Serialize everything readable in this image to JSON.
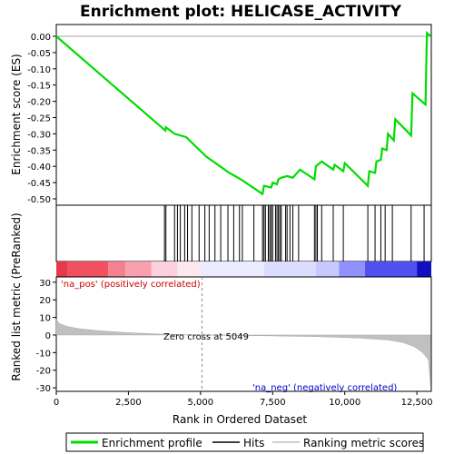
{
  "chart_data": {
    "type": "line",
    "title": "Enrichment plot: HELICASE_ACTIVITY",
    "top_panel": {
      "ylabel": "Enrichment score (ES)",
      "ylim": [
        -0.5,
        0.025
      ],
      "yticks": [
        0.0,
        -0.05,
        -0.1,
        -0.15,
        -0.2,
        -0.25,
        -0.3,
        -0.35,
        -0.4,
        -0.45,
        -0.5
      ],
      "ytick_labels": [
        "0.00",
        "-0.05",
        "-0.10",
        "-0.15",
        "-0.20",
        "-0.25",
        "-0.30",
        "-0.35",
        "-0.40",
        "-0.45",
        "-0.50"
      ],
      "series_color": "#00dd00",
      "es_points": [
        [
          0,
          0.0
        ],
        [
          3780,
          -0.29
        ],
        [
          3800,
          -0.28
        ],
        [
          4100,
          -0.3
        ],
        [
          4500,
          -0.31
        ],
        [
          5200,
          -0.37
        ],
        [
          6000,
          -0.42
        ],
        [
          6400,
          -0.44
        ],
        [
          6900,
          -0.47
        ],
        [
          7150,
          -0.485
        ],
        [
          7200,
          -0.46
        ],
        [
          7450,
          -0.465
        ],
        [
          7500,
          -0.45
        ],
        [
          7650,
          -0.455
        ],
        [
          7700,
          -0.44
        ],
        [
          7800,
          -0.435
        ],
        [
          8000,
          -0.43
        ],
        [
          8200,
          -0.435
        ],
        [
          8450,
          -0.41
        ],
        [
          8950,
          -0.44
        ],
        [
          9000,
          -0.4
        ],
        [
          9200,
          -0.385
        ],
        [
          9600,
          -0.41
        ],
        [
          9650,
          -0.395
        ],
        [
          9950,
          -0.415
        ],
        [
          10000,
          -0.39
        ],
        [
          10800,
          -0.46
        ],
        [
          10850,
          -0.415
        ],
        [
          11050,
          -0.42
        ],
        [
          11100,
          -0.385
        ],
        [
          11250,
          -0.38
        ],
        [
          11300,
          -0.345
        ],
        [
          11450,
          -0.35
        ],
        [
          11500,
          -0.3
        ],
        [
          11700,
          -0.32
        ],
        [
          11750,
          -0.255
        ],
        [
          12300,
          -0.305
        ],
        [
          12350,
          -0.175
        ],
        [
          12800,
          -0.21
        ],
        [
          12850,
          0.01
        ],
        [
          12980,
          0.0
        ]
      ]
    },
    "hits_positions": [
      3750,
      3800,
      4100,
      4200,
      4300,
      4450,
      4550,
      4700,
      4950,
      5150,
      5300,
      5500,
      5700,
      5950,
      6150,
      6350,
      6450,
      6850,
      7150,
      7200,
      7250,
      7350,
      7400,
      7450,
      7500,
      7600,
      7650,
      7700,
      7750,
      7800,
      7950,
      8000,
      8100,
      8200,
      8400,
      8950,
      9000,
      9050,
      9200,
      9600,
      9950,
      10800,
      11050,
      11250,
      11400,
      11650,
      12300,
      12750
    ],
    "bottom_panel": {
      "ylabel": "Ranked list metric (PreRanked)",
      "xlabel": "Rank in Ordered Dataset",
      "xlim": [
        0,
        13000
      ],
      "ylim": [
        -32,
        33
      ],
      "xticks": [
        0,
        2500,
        5000,
        7500,
        10000,
        12500
      ],
      "xtick_labels": [
        "0",
        "2,500",
        "5,000",
        "7,500",
        "10,000",
        "12,500"
      ],
      "yticks": [
        30,
        20,
        10,
        0,
        -10,
        -20,
        -30
      ],
      "ytick_labels": [
        "30",
        "20",
        "10",
        "0",
        "-10",
        "-20",
        "-30"
      ],
      "metric_points": [
        [
          0,
          9
        ],
        [
          100,
          6.5
        ],
        [
          400,
          4.8
        ],
        [
          800,
          3.6
        ],
        [
          1500,
          2.4
        ],
        [
          2500,
          1.3
        ],
        [
          3500,
          0.6
        ],
        [
          5049,
          0
        ],
        [
          7000,
          -0.4
        ],
        [
          9000,
          -0.9
        ],
        [
          10500,
          -1.7
        ],
        [
          11500,
          -2.8
        ],
        [
          12000,
          -4.2
        ],
        [
          12400,
          -6.5
        ],
        [
          12700,
          -10
        ],
        [
          12900,
          -14
        ],
        [
          12980,
          -30
        ]
      ],
      "zero_cross": 5049,
      "zero_cross_label": "Zero cross at 5049",
      "pos_label": "'na_pos' (positively correlated)",
      "neg_label": "'na_neg' (negatively correlated)"
    },
    "legend": {
      "entries": [
        {
          "label": "Enrichment profile",
          "color": "#00dd00"
        },
        {
          "label": "Hits",
          "color": "#000000"
        },
        {
          "label": "Ranking metric scores",
          "color": "#c0c0c0"
        }
      ]
    }
  }
}
